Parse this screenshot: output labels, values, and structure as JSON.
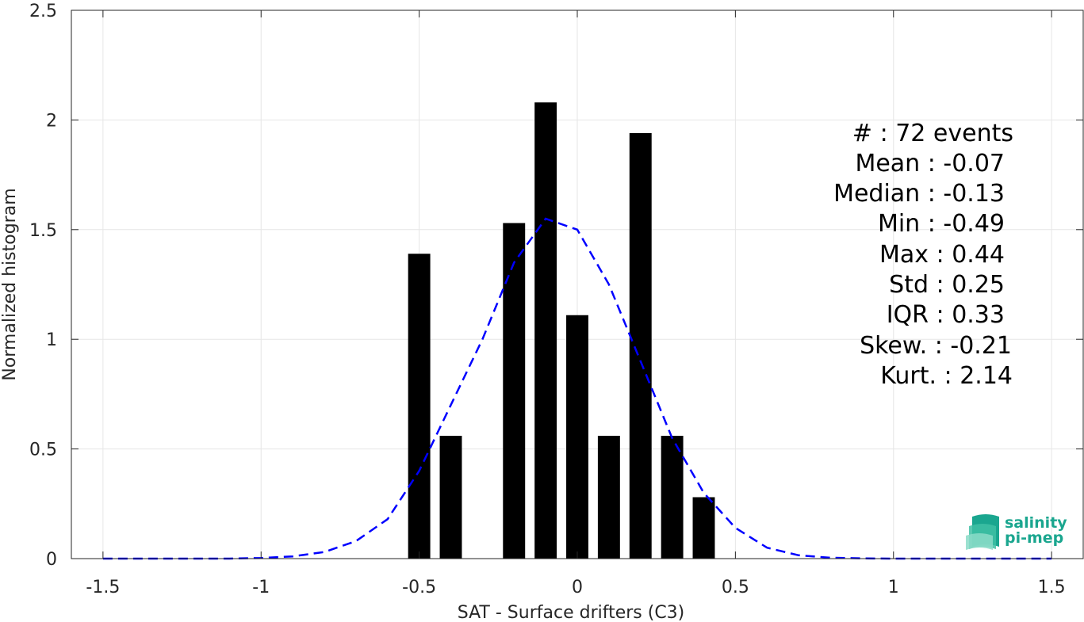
{
  "chart_data": {
    "type": "bar",
    "xlabel": "SAT - Surface drifters (C3)",
    "ylabel": "Normalized histogram",
    "xlim": [
      -1.6,
      1.6
    ],
    "ylim": [
      0,
      2.5
    ],
    "grid": true,
    "xticks": [
      -1.5,
      -1,
      -0.5,
      0,
      0.5,
      1,
      1.5
    ],
    "xtick_labels": [
      "-1.5",
      "-1",
      "-0.5",
      "0",
      "0.5",
      "1",
      "1.5"
    ],
    "yticks": [
      0,
      0.5,
      1,
      1.5,
      2,
      2.5
    ],
    "ytick_labels": [
      "0",
      "0.5",
      "1",
      "1.5",
      "2",
      "2.5"
    ],
    "bar_width": 0.07,
    "bars": [
      {
        "x": -0.5,
        "value": 1.39
      },
      {
        "x": -0.4,
        "value": 0.56
      },
      {
        "x": -0.2,
        "value": 1.53
      },
      {
        "x": -0.1,
        "value": 2.08
      },
      {
        "x": 0.0,
        "value": 1.11
      },
      {
        "x": 0.1,
        "value": 0.56
      },
      {
        "x": 0.2,
        "value": 1.94
      },
      {
        "x": 0.3,
        "value": 0.56
      },
      {
        "x": 0.4,
        "value": 0.28
      }
    ],
    "fit_curve": {
      "color": "#0000ff",
      "style": "dashed",
      "x": [
        -1.5,
        -1.4,
        -1.3,
        -1.2,
        -1.1,
        -1.0,
        -0.9,
        -0.8,
        -0.7,
        -0.6,
        -0.5,
        -0.4,
        -0.3,
        -0.2,
        -0.1,
        0.0,
        0.1,
        0.2,
        0.3,
        0.4,
        0.5,
        0.6,
        0.7,
        0.8,
        0.9,
        1.0,
        1.1,
        1.2,
        1.3,
        1.4,
        1.5
      ],
      "y": [
        0,
        0,
        0,
        0,
        0,
        0.003,
        0.01,
        0.03,
        0.08,
        0.18,
        0.4,
        0.7,
        1.0,
        1.35,
        1.55,
        1.5,
        1.25,
        0.9,
        0.55,
        0.3,
        0.14,
        0.05,
        0.015,
        0.004,
        0.001,
        0,
        0,
        0,
        0,
        0,
        0
      ]
    },
    "stats": [
      "#  : 72 events",
      "Mean : -0.07",
      "Median : -0.13",
      "Min : -0.49",
      "Max : 0.44",
      "Std : 0.25",
      "IQR : 0.33",
      "Skew. : -0.21",
      "Kurt. : 2.14"
    ]
  },
  "logo": {
    "line1": "salinity",
    "line2": "pi-mep",
    "color": "#1aa68f"
  }
}
